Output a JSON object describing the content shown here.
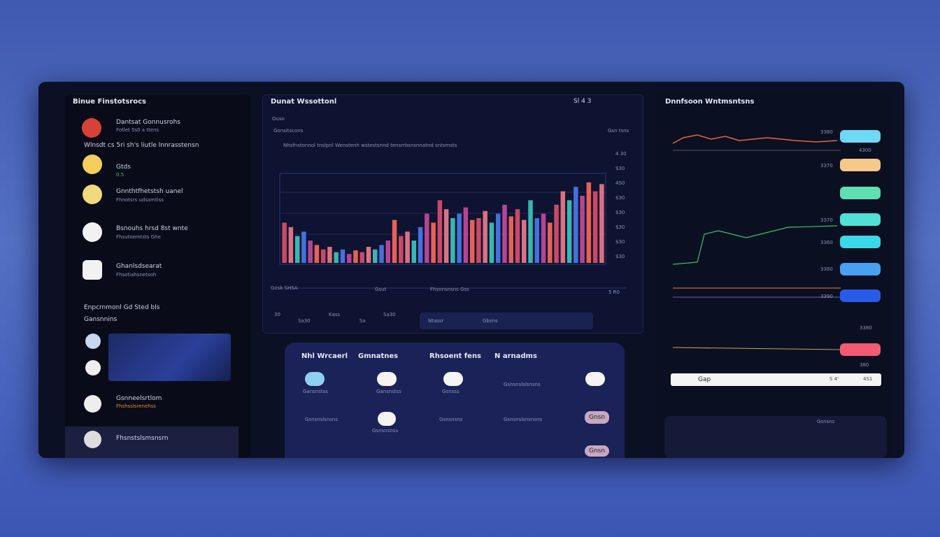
{
  "left_panel": {
    "title": "Binue Finstotsrocs",
    "featured": {
      "name": "Dantsat Gonnusrohs",
      "detail": "Fotlet 5s0 a ttens"
    },
    "section_heading": "Wlnsdt cs 5ri sh's liutle lnnrasstensn",
    "items": [
      {
        "name": "Gtds",
        "detail": "0.5"
      },
      {
        "name": "Gnnthtfhetstsh uanel",
        "detail": "Fhnotsrs udsamtiss"
      },
      {
        "name": "Bsnouhs hrsd 8st wnte",
        "detail": "Fhsutoemtsts Ghe"
      },
      {
        "name": "Ghanlsdsearat",
        "detail": "Fhsotiahsnetsoh"
      }
    ],
    "section2": "Enpcrnmonl Gd Sted bls",
    "section2_sub": "Gansnnins",
    "bottom_items": [
      {
        "name": "Gsnneelsrtlom",
        "detail": "Fhshsslsrenehss"
      },
      {
        "name": "Fhsnstslsmsnsrn"
      }
    ]
  },
  "center_panel": {
    "title": "Dunat Wssottonl",
    "toolbar": "Sl 4 3",
    "label": "Ouso",
    "subtitle": "Gonsitscons",
    "side_note": "Gsn tsns",
    "caption": "Nhsfnstonnol tnslpnl Wenstenh wstestsnnd tensrrbsnsnnatnd sntsmsts",
    "right_labels": [
      "4 30",
      "$30",
      "4S0",
      "$30",
      "$30",
      "$30",
      "$30",
      "$30"
    ],
    "chart": {
      "type": "bar",
      "ylim": [
        0,
        100
      ],
      "colors": [
        "#e0506e",
        "#f27c8c",
        "#3ec9c0",
        "#4a7cf0",
        "#c84aa0",
        "#ff6a5a"
      ],
      "values": [
        45,
        40,
        30,
        35,
        25,
        20,
        15,
        18,
        12,
        15,
        10,
        14,
        12,
        18,
        15,
        20,
        25,
        48,
        30,
        35,
        25,
        40,
        55,
        45,
        70,
        60,
        50,
        55,
        62,
        48,
        50,
        58,
        45,
        55,
        65,
        52,
        60,
        48,
        70,
        50,
        55,
        45,
        65,
        80,
        70,
        85,
        75,
        90,
        80,
        88
      ]
    },
    "footer": [
      "Gosk SHSA",
      "Gsut",
      "Fhsnnsnsns Gss",
      "5 R0"
    ],
    "controls": [
      "30",
      "Sa30",
      "Kass",
      "Sa",
      "Sa30",
      "Ntassr",
      "Gbsns"
    ]
  },
  "bottom_panel": {
    "headers": [
      "Nhl Wrcaerl",
      "Gmnatnes",
      "Rhsoent fens",
      "N arnadms"
    ],
    "row1": [
      "Gansnstss",
      "Gansnstss",
      "Gsnsss",
      "Gsnsnslslsnsns"
    ],
    "row2": [
      "Gsnsnslsnsns",
      "Gsnsnsnss",
      "Gsnsnsns",
      "Gsnsnslsnsnsns"
    ],
    "badges": [
      "Gnsn",
      "Gnsn"
    ]
  },
  "right_panel": {
    "title": "Dnnfsoon Wntmsntsns",
    "labels": [
      "3380",
      "4300",
      "3370",
      "3370",
      "3360",
      "3380",
      "3390",
      "3380",
      "380"
    ],
    "search": "Gap",
    "search_meta": "S 4'",
    "search_end": "4S1",
    "footer": "Gsnsns"
  }
}
